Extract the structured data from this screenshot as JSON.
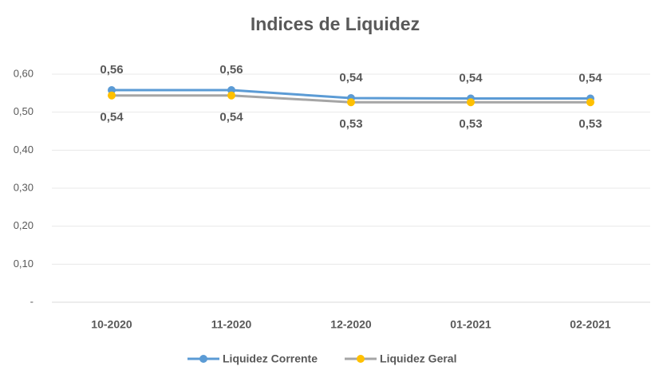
{
  "chart_data": {
    "type": "line",
    "title": "Indices de Liquidez",
    "categories": [
      "10-2020",
      "11-2020",
      "12-2020",
      "01-2021",
      "02-2021"
    ],
    "series": [
      {
        "name": "Liquidez Corrente",
        "color": "#5b9bd5",
        "marker_color": "#5b9bd5",
        "values": [
          0.558,
          0.558,
          0.537,
          0.536,
          0.536
        ],
        "value_labels": [
          "0,56",
          "0,56",
          "0,54",
          "0,54",
          "0,54"
        ]
      },
      {
        "name": "Liquidez Geral",
        "color": "#a5a5a5",
        "marker_color": "#ffc000",
        "values": [
          0.544,
          0.544,
          0.526,
          0.526,
          0.526
        ],
        "value_labels": [
          "0,54",
          "0,54",
          "0,53",
          "0,53",
          "0,53"
        ]
      }
    ],
    "ylim": [
      0,
      0.6
    ],
    "yticks": [
      {
        "value": 0,
        "label": "-"
      },
      {
        "value": 0.1,
        "label": "0,10"
      },
      {
        "value": 0.2,
        "label": "0,20"
      },
      {
        "value": 0.3,
        "label": "0,30"
      },
      {
        "value": 0.4,
        "label": "0,40"
      },
      {
        "value": 0.5,
        "label": "0,50"
      },
      {
        "value": 0.6,
        "label": "0,60"
      }
    ],
    "grid": true,
    "legend": "bottom"
  }
}
